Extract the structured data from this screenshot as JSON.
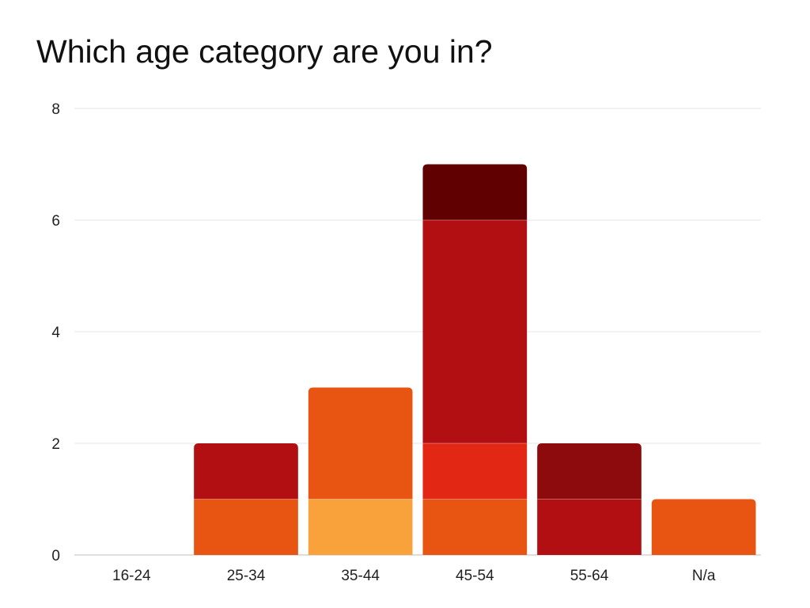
{
  "chart_data": {
    "type": "bar",
    "stacked": true,
    "title": "Which age category are you in?",
    "xlabel": "",
    "ylabel": "",
    "categories": [
      "16-24",
      "25-34",
      "35-44",
      "45-54",
      "55-64",
      "N/a"
    ],
    "ylim": [
      0,
      8
    ],
    "yticks": [
      0,
      2,
      4,
      6,
      8
    ],
    "grid": true,
    "legend": "none",
    "segments": [
      [],
      [
        {
          "value": 1,
          "color": "#E85411"
        },
        {
          "value": 1,
          "color": "#B20F12"
        }
      ],
      [
        {
          "value": 1,
          "color": "#F9A23B"
        },
        {
          "value": 2,
          "color": "#E85411"
        }
      ],
      [
        {
          "value": 1,
          "color": "#E85411"
        },
        {
          "value": 1,
          "color": "#E32715"
        },
        {
          "value": 4,
          "color": "#B20F12"
        },
        {
          "value": 1,
          "color": "#600000"
        }
      ],
      [
        {
          "value": 1,
          "color": "#B20F12"
        },
        {
          "value": 1,
          "color": "#8D0B0C"
        }
      ],
      [
        {
          "value": 1,
          "color": "#E85411"
        }
      ]
    ]
  }
}
